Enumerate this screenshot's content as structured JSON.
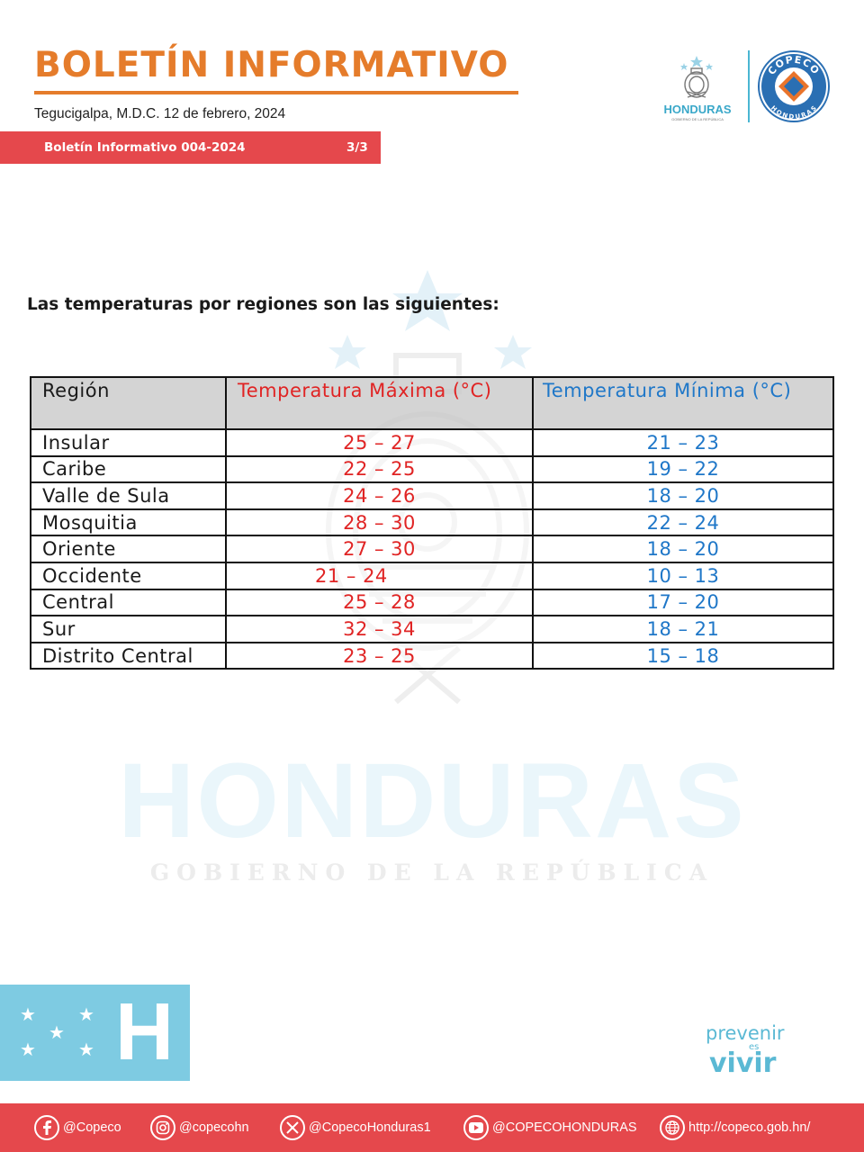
{
  "header": {
    "title": "BOLETÍN INFORMATIVO",
    "dateline": "Tegucigalpa, M.D.C. 12 de febrero, 2024",
    "bulletin_code": "Boletín Informativo 004-2024",
    "page_indicator": "3/3",
    "logo_honduras_text": "HONDURAS",
    "logo_honduras_subtext": "GOBIERNO DE LA REPÚBLICA",
    "logo_copeco_text": "COPECO",
    "logo_copeco_subtext": "HONDURAS"
  },
  "watermark": {
    "word": "HONDURAS",
    "subtitle": "GOBIERNO DE LA REPÚBLICA"
  },
  "intro": "Las temperaturas por regiones son las siguientes:",
  "table": {
    "headers": {
      "region": "Región",
      "max": "Temperatura Máxima (°C)",
      "min": "Temperatura Mínima (°C)"
    },
    "rows": [
      {
        "region": "Insular",
        "max": "25 – 27",
        "min": "21 – 23"
      },
      {
        "region": "Caribe",
        "max": "22 – 25",
        "min": "19 – 22"
      },
      {
        "region": "Valle de Sula",
        "max": "24 – 26",
        "min": "18 – 20"
      },
      {
        "region": "Mosquitia",
        "max": "28 – 30",
        "min": "22 – 24"
      },
      {
        "region": "Oriente",
        "max": "27 – 30",
        "min": "18 – 20"
      },
      {
        "region": "Occidente",
        "max": "21 – 24",
        "min": "10 – 13"
      },
      {
        "region": "Central",
        "max": "25 – 28",
        "min": "17 – 20"
      },
      {
        "region": "Sur",
        "max": "32 – 34",
        "min": "18 – 21"
      },
      {
        "region": "Distrito Central",
        "max": "23 – 25",
        "min": "15 – 18"
      }
    ]
  },
  "footer": {
    "flag_letter": "H",
    "slogan_line1": "prevenir",
    "slogan_line2": "es",
    "slogan_line3": "vivir",
    "social": [
      {
        "icon": "facebook-icon",
        "label": "@Copeco"
      },
      {
        "icon": "instagram-icon",
        "label": "@copecohn"
      },
      {
        "icon": "x-icon",
        "label": "@CopecoHonduras1"
      },
      {
        "icon": "youtube-icon",
        "label": "@COPECOHONDURAS"
      },
      {
        "icon": "globe-icon",
        "label": "http://copeco.gob.hn/"
      }
    ]
  },
  "colors": {
    "orange": "#e57c2b",
    "red_bar": "#e5484c",
    "max_red": "#e02424",
    "min_blue": "#1f77c8",
    "flag_blue": "#7ecbe2"
  }
}
